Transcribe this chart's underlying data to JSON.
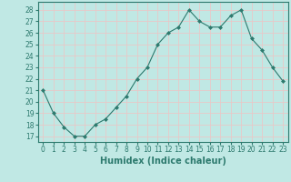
{
  "x": [
    0,
    1,
    2,
    3,
    4,
    5,
    6,
    7,
    8,
    9,
    10,
    11,
    12,
    13,
    14,
    15,
    16,
    17,
    18,
    19,
    20,
    21,
    22,
    23
  ],
  "y": [
    21,
    19,
    17.8,
    17,
    17,
    18,
    18.5,
    19.5,
    20.5,
    22,
    23,
    25,
    26,
    26.5,
    28,
    27,
    26.5,
    26.5,
    27.5,
    28,
    25.5,
    24.5,
    23,
    21.8
  ],
  "line_color": "#2d7a6e",
  "marker": "D",
  "marker_size": 2,
  "bg_color": "#c0e8e4",
  "grid_color": "#e8c8c8",
  "xlabel": "Humidex (Indice chaleur)",
  "xlim": [
    -0.5,
    23.5
  ],
  "ylim": [
    16.5,
    28.7
  ],
  "yticks": [
    17,
    18,
    19,
    20,
    21,
    22,
    23,
    24,
    25,
    26,
    27,
    28
  ],
  "xticks": [
    0,
    1,
    2,
    3,
    4,
    5,
    6,
    7,
    8,
    9,
    10,
    11,
    12,
    13,
    14,
    15,
    16,
    17,
    18,
    19,
    20,
    21,
    22,
    23
  ],
  "tick_label_fontsize": 5.5,
  "xlabel_fontsize": 7,
  "spine_color": "#2d7a6e"
}
